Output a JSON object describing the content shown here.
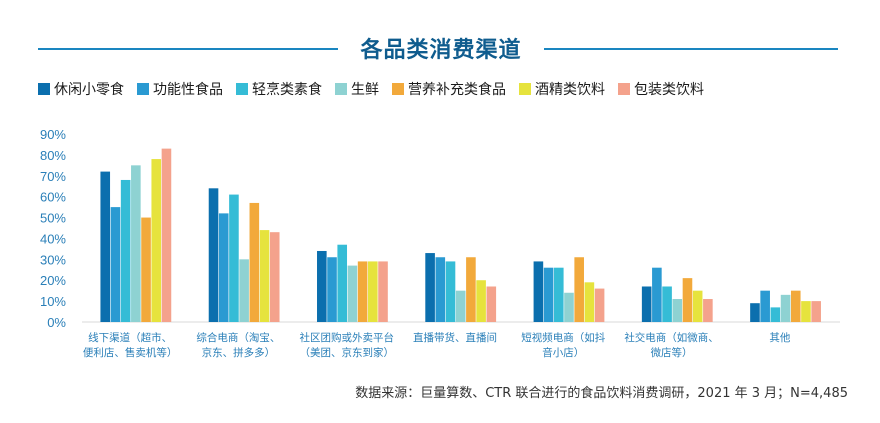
{
  "colors": {
    "accent": "#1a86c0",
    "title": "#0f5c8e",
    "axis_text": "#2a7fb8"
  },
  "header": {
    "title": "各品类消费渠道"
  },
  "source_note": "数据来源：巨量算数、CTR 联合进行的食品饮料消费调研，2021 年 3 月；N=4,485",
  "chart_data": {
    "type": "bar",
    "title": "各品类消费渠道",
    "xlabel": "",
    "ylabel": "",
    "ylim": [
      0,
      90
    ],
    "yticks": [
      "0%",
      "10%",
      "20%",
      "30%",
      "40%",
      "50%",
      "60%",
      "70%",
      "80%",
      "90%"
    ],
    "grid": false,
    "legend_position": "top",
    "categories": [
      [
        "线下渠道（超市、",
        "便利店、售卖机等）"
      ],
      [
        "综合电商（淘宝、",
        "京东、拼多多）"
      ],
      [
        "社区团购或外卖平台",
        "（美团、京东到家）"
      ],
      [
        "直播带货、直播间"
      ],
      [
        "短视频电商（如抖",
        "音小店）"
      ],
      [
        "社交电商（如微商、",
        "微店等）"
      ],
      [
        "其他"
      ]
    ],
    "series": [
      {
        "name": "休闲小零食",
        "color": "#0b6fae",
        "values": [
          72,
          64,
          34,
          33,
          29,
          17,
          9
        ]
      },
      {
        "name": "功能性食品",
        "color": "#2a9ad2",
        "values": [
          55,
          52,
          31,
          31,
          26,
          26,
          15
        ]
      },
      {
        "name": "轻烹类素食",
        "color": "#35bcd6",
        "values": [
          68,
          61,
          37,
          29,
          26,
          17,
          7
        ]
      },
      {
        "name": "生鲜",
        "color": "#8ed2d2",
        "values": [
          75,
          30,
          27,
          15,
          14,
          11,
          13
        ]
      },
      {
        "name": "营养补充类食品",
        "color": "#f2a93b",
        "values": [
          50,
          57,
          29,
          31,
          31,
          21,
          15
        ]
      },
      {
        "name": "酒精类饮料",
        "color": "#e6e33d",
        "values": [
          78,
          44,
          29,
          20,
          19,
          15,
          10
        ]
      },
      {
        "name": "包装类饮料",
        "color": "#f4a28c",
        "values": [
          83,
          43,
          29,
          17,
          16,
          11,
          10
        ]
      }
    ]
  }
}
